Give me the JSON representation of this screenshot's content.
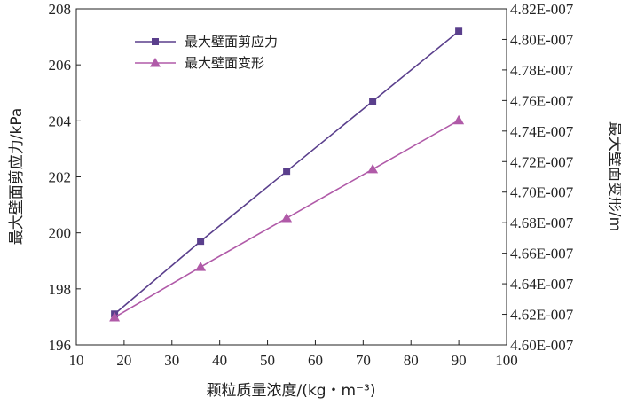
{
  "chart_data": {
    "type": "line",
    "x": [
      18,
      36,
      54,
      72,
      90
    ],
    "xlabel": "颗粒质量浓度/(kg・m⁻³)",
    "xlim": [
      10,
      100
    ],
    "xticks": [
      "10",
      "20",
      "30",
      "40",
      "50",
      "60",
      "70",
      "80",
      "90",
      "100"
    ],
    "ylabel_left": "最大壁面剪应力/kPa",
    "ylim_left": [
      196,
      208
    ],
    "yticks_left": [
      "196",
      "198",
      "200",
      "202",
      "204",
      "206",
      "208"
    ],
    "ylabel_right": "最大壁面变形/m",
    "ylim_right": [
      4.6e-07,
      4.82e-07
    ],
    "yticks_right": [
      "4.60E-007",
      "4.62E-007",
      "4.64E-007",
      "4.66E-007",
      "4.68E-007",
      "4.70E-007",
      "4.72E-007",
      "4.74E-007",
      "4.76E-007",
      "4.78E-007",
      "4.80E-007",
      "4.82E-007"
    ],
    "grid": false,
    "legend_position": "top-left",
    "series": [
      {
        "name": "最大壁面剪应力",
        "axis": "left",
        "marker": "square",
        "color": "#5a3f8c",
        "values": [
          197.1,
          199.7,
          202.2,
          204.7,
          207.2
        ]
      },
      {
        "name": "最大壁面变形",
        "axis": "right",
        "marker": "triangle",
        "color": "#b05aa8",
        "values": [
          4.618e-07,
          4.651e-07,
          4.683e-07,
          4.715e-07,
          4.747e-07
        ]
      }
    ]
  }
}
